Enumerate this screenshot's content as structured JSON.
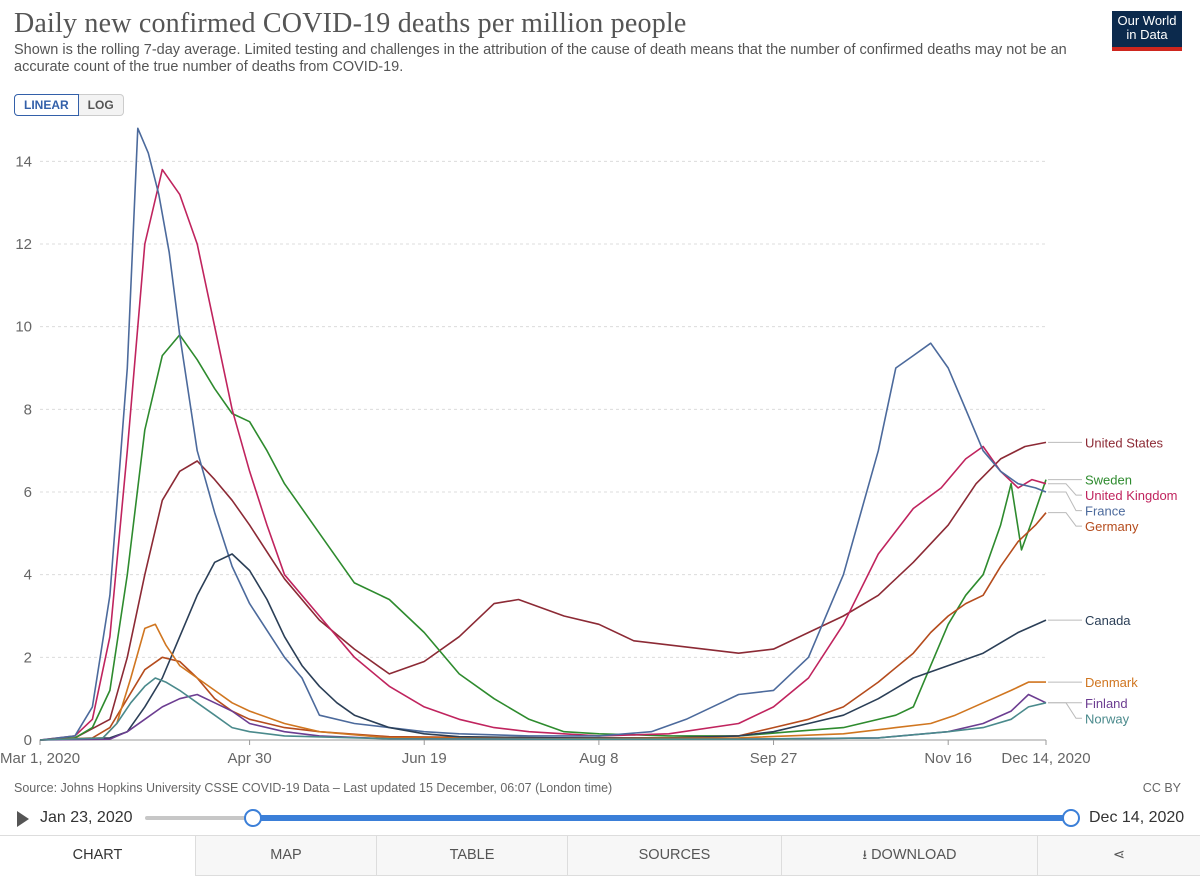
{
  "header": {
    "title": "Daily new confirmed COVID-19 deaths per million people",
    "subtitle": "Shown is the rolling 7-day average. Limited testing and challenges in the attribution of the cause of death means that the number of confirmed deaths may not be an accurate count of the true number of deaths from COVID-19.",
    "logo_line1": "Our World",
    "logo_line2": "in Data"
  },
  "scale_toggle": {
    "linear": "LINEAR",
    "log": "LOG",
    "selected": "LINEAR"
  },
  "chart_data": {
    "type": "line",
    "title": "Daily new confirmed COVID-19 deaths per million people",
    "xlabel": "",
    "ylabel": "",
    "x_ticks": [
      "Mar 1, 2020",
      "Apr 30",
      "Jun 19",
      "Aug 8",
      "Sep 27",
      "Nov 16",
      "Dec 14, 2020"
    ],
    "y_ticks": [
      "0",
      "2",
      "4",
      "6",
      "8",
      "10",
      "12",
      "14"
    ],
    "x_range_days": [
      0,
      288
    ],
    "ylim": [
      0,
      15
    ],
    "grid": "horizontal dashed",
    "legend": "right end labels",
    "series": [
      {
        "name": "United States",
        "color": "#8c2a35",
        "points": [
          [
            0,
            0
          ],
          [
            10,
            0.05
          ],
          [
            20,
            0.5
          ],
          [
            25,
            2
          ],
          [
            30,
            4
          ],
          [
            35,
            5.8
          ],
          [
            40,
            6.5
          ],
          [
            45,
            6.75
          ],
          [
            50,
            6.3
          ],
          [
            55,
            5.8
          ],
          [
            60,
            5.2
          ],
          [
            70,
            3.9
          ],
          [
            80,
            2.9
          ],
          [
            90,
            2.2
          ],
          [
            100,
            1.6
          ],
          [
            110,
            1.9
          ],
          [
            120,
            2.5
          ],
          [
            130,
            3.3
          ],
          [
            137,
            3.4
          ],
          [
            150,
            3.0
          ],
          [
            160,
            2.8
          ],
          [
            170,
            2.4
          ],
          [
            180,
            2.3
          ],
          [
            190,
            2.2
          ],
          [
            200,
            2.1
          ],
          [
            210,
            2.2
          ],
          [
            220,
            2.6
          ],
          [
            230,
            3.0
          ],
          [
            240,
            3.5
          ],
          [
            250,
            4.3
          ],
          [
            260,
            5.2
          ],
          [
            268,
            6.2
          ],
          [
            275,
            6.8
          ],
          [
            282,
            7.1
          ],
          [
            288,
            7.2
          ]
        ]
      },
      {
        "name": "Sweden",
        "color": "#2e8b2e",
        "points": [
          [
            0,
            0
          ],
          [
            10,
            0.05
          ],
          [
            15,
            0.3
          ],
          [
            20,
            1.2
          ],
          [
            25,
            4
          ],
          [
            30,
            7.5
          ],
          [
            35,
            9.3
          ],
          [
            40,
            9.8
          ],
          [
            45,
            9.2
          ],
          [
            50,
            8.5
          ],
          [
            55,
            7.9
          ],
          [
            60,
            7.7
          ],
          [
            65,
            7.0
          ],
          [
            70,
            6.2
          ],
          [
            80,
            5.0
          ],
          [
            90,
            3.8
          ],
          [
            100,
            3.4
          ],
          [
            110,
            2.6
          ],
          [
            120,
            1.6
          ],
          [
            130,
            1.0
          ],
          [
            140,
            0.5
          ],
          [
            150,
            0.2
          ],
          [
            160,
            0.15
          ],
          [
            180,
            0.1
          ],
          [
            200,
            0.1
          ],
          [
            215,
            0.2
          ],
          [
            230,
            0.3
          ],
          [
            245,
            0.6
          ],
          [
            250,
            0.8
          ],
          [
            255,
            1.8
          ],
          [
            260,
            2.8
          ],
          [
            265,
            3.5
          ],
          [
            270,
            4.0
          ],
          [
            275,
            5.2
          ],
          [
            278,
            6.2
          ],
          [
            281,
            4.6
          ],
          [
            284,
            5.3
          ],
          [
            288,
            6.3
          ]
        ]
      },
      {
        "name": "United Kingdom",
        "color": "#c0245e",
        "points": [
          [
            0,
            0
          ],
          [
            10,
            0.1
          ],
          [
            15,
            0.5
          ],
          [
            20,
            2.5
          ],
          [
            25,
            7
          ],
          [
            30,
            12
          ],
          [
            35,
            13.8
          ],
          [
            40,
            13.2
          ],
          [
            45,
            12
          ],
          [
            50,
            10
          ],
          [
            55,
            8.0
          ],
          [
            60,
            6.5
          ],
          [
            65,
            5.2
          ],
          [
            70,
            4.0
          ],
          [
            80,
            3.0
          ],
          [
            90,
            2.0
          ],
          [
            100,
            1.3
          ],
          [
            110,
            0.8
          ],
          [
            120,
            0.5
          ],
          [
            130,
            0.3
          ],
          [
            140,
            0.2
          ],
          [
            160,
            0.1
          ],
          [
            180,
            0.15
          ],
          [
            200,
            0.4
          ],
          [
            210,
            0.8
          ],
          [
            220,
            1.5
          ],
          [
            230,
            2.8
          ],
          [
            240,
            4.5
          ],
          [
            250,
            5.6
          ],
          [
            258,
            6.1
          ],
          [
            265,
            6.8
          ],
          [
            270,
            7.1
          ],
          [
            275,
            6.5
          ],
          [
            280,
            6.1
          ],
          [
            284,
            6.3
          ],
          [
            288,
            6.2
          ]
        ]
      },
      {
        "name": "France",
        "color": "#4c6a9c",
        "points": [
          [
            0,
            0
          ],
          [
            10,
            0.1
          ],
          [
            15,
            0.8
          ],
          [
            20,
            3.5
          ],
          [
            25,
            9
          ],
          [
            28,
            14.8
          ],
          [
            31,
            14.2
          ],
          [
            34,
            13.2
          ],
          [
            37,
            11.8
          ],
          [
            40,
            9.8
          ],
          [
            45,
            7.0
          ],
          [
            50,
            5.5
          ],
          [
            55,
            4.2
          ],
          [
            60,
            3.3
          ],
          [
            70,
            2.0
          ],
          [
            75,
            1.5
          ],
          [
            80,
            0.6
          ],
          [
            90,
            0.4
          ],
          [
            100,
            0.3
          ],
          [
            110,
            0.2
          ],
          [
            120,
            0.15
          ],
          [
            140,
            0.1
          ],
          [
            160,
            0.1
          ],
          [
            175,
            0.2
          ],
          [
            185,
            0.5
          ],
          [
            195,
            0.9
          ],
          [
            200,
            1.1
          ],
          [
            210,
            1.2
          ],
          [
            220,
            2.0
          ],
          [
            230,
            4.0
          ],
          [
            240,
            7.0
          ],
          [
            245,
            9.0
          ],
          [
            250,
            9.3
          ],
          [
            255,
            9.6
          ],
          [
            260,
            9.0
          ],
          [
            265,
            8.0
          ],
          [
            270,
            7.0
          ],
          [
            275,
            6.5
          ],
          [
            280,
            6.2
          ],
          [
            285,
            6.1
          ],
          [
            288,
            6.0
          ]
        ]
      },
      {
        "name": "Germany",
        "color": "#b54c1d",
        "points": [
          [
            0,
            0
          ],
          [
            15,
            0.05
          ],
          [
            20,
            0.3
          ],
          [
            25,
            1.0
          ],
          [
            30,
            1.7
          ],
          [
            35,
            2.0
          ],
          [
            40,
            1.9
          ],
          [
            45,
            1.5
          ],
          [
            50,
            1.0
          ],
          [
            55,
            0.7
          ],
          [
            60,
            0.5
          ],
          [
            70,
            0.3
          ],
          [
            80,
            0.2
          ],
          [
            100,
            0.08
          ],
          [
            140,
            0.05
          ],
          [
            180,
            0.05
          ],
          [
            200,
            0.1
          ],
          [
            210,
            0.3
          ],
          [
            220,
            0.5
          ],
          [
            230,
            0.8
          ],
          [
            240,
            1.4
          ],
          [
            250,
            2.1
          ],
          [
            255,
            2.6
          ],
          [
            260,
            3.0
          ],
          [
            265,
            3.3
          ],
          [
            270,
            3.5
          ],
          [
            275,
            4.2
          ],
          [
            280,
            4.8
          ],
          [
            285,
            5.2
          ],
          [
            288,
            5.5
          ]
        ]
      },
      {
        "name": "Canada",
        "color": "#2b3f57",
        "points": [
          [
            0,
            0
          ],
          [
            20,
            0.05
          ],
          [
            25,
            0.2
          ],
          [
            30,
            0.8
          ],
          [
            35,
            1.5
          ],
          [
            40,
            2.5
          ],
          [
            45,
            3.5
          ],
          [
            50,
            4.3
          ],
          [
            55,
            4.5
          ],
          [
            60,
            4.1
          ],
          [
            65,
            3.4
          ],
          [
            70,
            2.5
          ],
          [
            75,
            1.8
          ],
          [
            80,
            1.3
          ],
          [
            85,
            0.9
          ],
          [
            90,
            0.6
          ],
          [
            100,
            0.3
          ],
          [
            110,
            0.15
          ],
          [
            120,
            0.08
          ],
          [
            150,
            0.05
          ],
          [
            180,
            0.05
          ],
          [
            200,
            0.1
          ],
          [
            210,
            0.2
          ],
          [
            220,
            0.4
          ],
          [
            230,
            0.6
          ],
          [
            240,
            1.0
          ],
          [
            250,
            1.5
          ],
          [
            260,
            1.8
          ],
          [
            270,
            2.1
          ],
          [
            280,
            2.6
          ],
          [
            288,
            2.9
          ]
        ]
      },
      {
        "name": "Denmark",
        "color": "#d07620",
        "points": [
          [
            0,
            0
          ],
          [
            18,
            0.05
          ],
          [
            22,
            0.4
          ],
          [
            26,
            1.5
          ],
          [
            30,
            2.7
          ],
          [
            33,
            2.8
          ],
          [
            36,
            2.3
          ],
          [
            40,
            1.8
          ],
          [
            45,
            1.5
          ],
          [
            50,
            1.2
          ],
          [
            55,
            0.9
          ],
          [
            60,
            0.7
          ],
          [
            70,
            0.4
          ],
          [
            80,
            0.2
          ],
          [
            100,
            0.05
          ],
          [
            150,
            0.03
          ],
          [
            200,
            0.05
          ],
          [
            230,
            0.15
          ],
          [
            245,
            0.3
          ],
          [
            255,
            0.4
          ],
          [
            262,
            0.6
          ],
          [
            270,
            0.9
          ],
          [
            278,
            1.2
          ],
          [
            283,
            1.4
          ],
          [
            288,
            1.4
          ]
        ]
      },
      {
        "name": "Finland",
        "color": "#6c3d91",
        "points": [
          [
            0,
            0
          ],
          [
            20,
            0.02
          ],
          [
            25,
            0.2
          ],
          [
            30,
            0.5
          ],
          [
            35,
            0.8
          ],
          [
            40,
            1.0
          ],
          [
            45,
            1.1
          ],
          [
            50,
            0.9
          ],
          [
            55,
            0.7
          ],
          [
            60,
            0.4
          ],
          [
            70,
            0.2
          ],
          [
            80,
            0.1
          ],
          [
            100,
            0.03
          ],
          [
            150,
            0.02
          ],
          [
            200,
            0.02
          ],
          [
            240,
            0.05
          ],
          [
            260,
            0.2
          ],
          [
            270,
            0.4
          ],
          [
            278,
            0.7
          ],
          [
            283,
            1.1
          ],
          [
            288,
            0.9
          ]
        ]
      },
      {
        "name": "Norway",
        "color": "#4a8a8c",
        "points": [
          [
            0,
            0
          ],
          [
            18,
            0.05
          ],
          [
            22,
            0.4
          ],
          [
            26,
            0.9
          ],
          [
            30,
            1.3
          ],
          [
            33,
            1.5
          ],
          [
            36,
            1.4
          ],
          [
            40,
            1.2
          ],
          [
            45,
            0.9
          ],
          [
            50,
            0.6
          ],
          [
            55,
            0.3
          ],
          [
            60,
            0.2
          ],
          [
            70,
            0.1
          ],
          [
            100,
            0.03
          ],
          [
            150,
            0.02
          ],
          [
            200,
            0.02
          ],
          [
            240,
            0.05
          ],
          [
            260,
            0.2
          ],
          [
            270,
            0.3
          ],
          [
            278,
            0.5
          ],
          [
            283,
            0.8
          ],
          [
            288,
            0.9
          ]
        ]
      }
    ]
  },
  "footer": {
    "source": "Source: Johns Hopkins University CSSE COVID-19 Data – Last updated 15 December, 06:07 (London time)",
    "license": "CC BY"
  },
  "timeline": {
    "start_label": "Jan 23, 2020",
    "end_label": "Dec 14, 2020"
  },
  "tabs": [
    {
      "label": "CHART",
      "active": true
    },
    {
      "label": "MAP"
    },
    {
      "label": "TABLE"
    },
    {
      "label": "SOURCES"
    },
    {
      "label": "DOWNLOAD",
      "icon": "download-icon"
    },
    {
      "label": "",
      "icon": "share-icon"
    }
  ]
}
